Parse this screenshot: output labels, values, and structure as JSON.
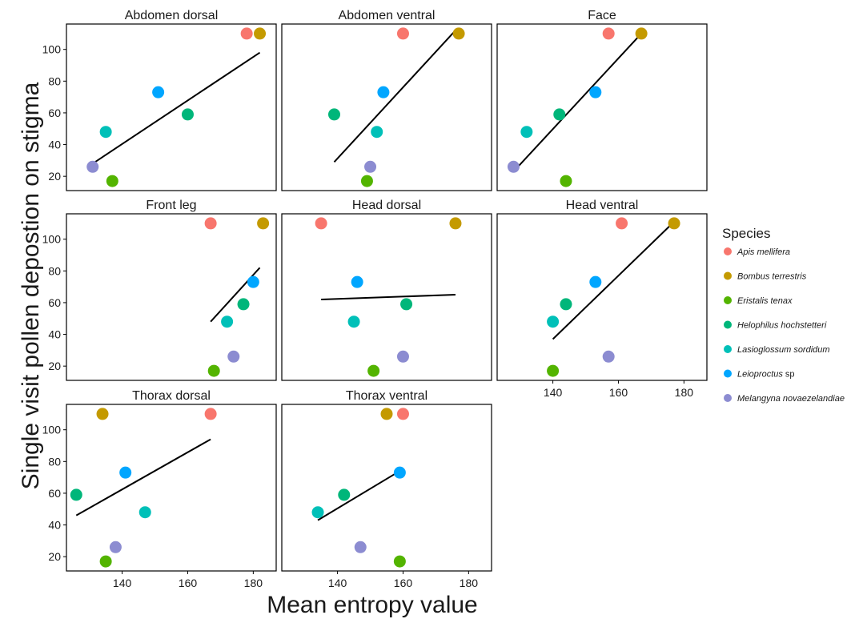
{
  "chart_data": {
    "type": "scatter",
    "xlabel": "Mean entropy value",
    "ylabel": "Single visit pollen depostion on stigma",
    "xlim": [
      123,
      187
    ],
    "ylim": [
      11,
      116
    ],
    "x_ticks": [
      140,
      160,
      180
    ],
    "y_ticks": [
      20,
      40,
      60,
      80,
      100
    ],
    "grid": false,
    "legend_position": "right",
    "legend": {
      "title": "Species",
      "entries": [
        {
          "name": "Apis mellifera",
          "color": "#f8766d",
          "italic": true
        },
        {
          "name": "Bombus terrestris",
          "color": "#c49a00",
          "italic": true
        },
        {
          "name": "Eristalis tenax",
          "color": "#53b400",
          "italic": true
        },
        {
          "name": "Helophilus hochstetteri",
          "color": "#00b67a",
          "italic": true
        },
        {
          "name": "Lasioglossum sordidum",
          "color": "#00c0b8",
          "italic": true
        },
        {
          "name": "Leioproctus sp",
          "color": "#00a6ff",
          "italic_part": "Leioproctus",
          "plain_part": " sp"
        },
        {
          "name": "Melangyna novaezelandiae",
          "color": "#8c8cd1",
          "italic": true
        }
      ]
    },
    "panels": [
      {
        "title": "Abdomen dorsal",
        "points": [
          [
            178,
            110
          ],
          [
            182,
            110
          ],
          [
            137,
            17
          ],
          [
            160,
            59
          ],
          [
            135,
            48
          ],
          [
            151,
            73
          ],
          [
            131,
            26
          ]
        ],
        "fit": [
          [
            131,
            28
          ],
          [
            182,
            98
          ]
        ]
      },
      {
        "title": "Abdomen ventral",
        "points": [
          [
            160,
            110
          ],
          [
            177,
            110
          ],
          [
            149,
            17
          ],
          [
            139,
            59
          ],
          [
            152,
            48
          ],
          [
            154,
            73
          ],
          [
            150,
            26
          ]
        ],
        "fit": [
          [
            139,
            29
          ],
          [
            176,
            112
          ]
        ]
      },
      {
        "title": "Face",
        "points": [
          [
            157,
            110
          ],
          [
            167,
            110
          ],
          [
            144,
            17
          ],
          [
            142,
            59
          ],
          [
            132,
            48
          ],
          [
            153,
            73
          ],
          [
            128,
            26
          ]
        ],
        "fit": [
          [
            128,
            23
          ],
          [
            167,
            110
          ]
        ]
      },
      {
        "title": "Front leg",
        "points": [
          [
            167,
            110
          ],
          [
            183,
            110
          ],
          [
            168,
            17
          ],
          [
            177,
            59
          ],
          [
            172,
            48
          ],
          [
            180,
            73
          ],
          [
            174,
            26
          ]
        ],
        "fit": [
          [
            167,
            48
          ],
          [
            182,
            82
          ]
        ]
      },
      {
        "title": "Head dorsal",
        "points": [
          [
            135,
            110
          ],
          [
            176,
            110
          ],
          [
            151,
            17
          ],
          [
            161,
            59
          ],
          [
            145,
            48
          ],
          [
            146,
            73
          ],
          [
            160,
            26
          ]
        ],
        "fit": [
          [
            135,
            62
          ],
          [
            176,
            65
          ]
        ]
      },
      {
        "title": "Head ventral",
        "points": [
          [
            161,
            110
          ],
          [
            177,
            110
          ],
          [
            140,
            17
          ],
          [
            144,
            59
          ],
          [
            140,
            48
          ],
          [
            153,
            73
          ],
          [
            157,
            26
          ]
        ],
        "fit": [
          [
            140,
            37
          ],
          [
            177,
            111
          ]
        ]
      },
      {
        "title": "Thorax dorsal",
        "points": [
          [
            167,
            110
          ],
          [
            134,
            110
          ],
          [
            135,
            17
          ],
          [
            126,
            59
          ],
          [
            147,
            48
          ],
          [
            141,
            73
          ],
          [
            138,
            26
          ]
        ],
        "fit": [
          [
            126,
            46
          ],
          [
            167,
            94
          ]
        ]
      },
      {
        "title": "Thorax ventral",
        "points": [
          [
            160,
            110
          ],
          [
            155,
            110
          ],
          [
            159,
            17
          ],
          [
            142,
            59
          ],
          [
            134,
            48
          ],
          [
            159,
            73
          ],
          [
            147,
            26
          ]
        ],
        "fit": [
          [
            134,
            43
          ],
          [
            159,
            74
          ]
        ]
      }
    ]
  }
}
